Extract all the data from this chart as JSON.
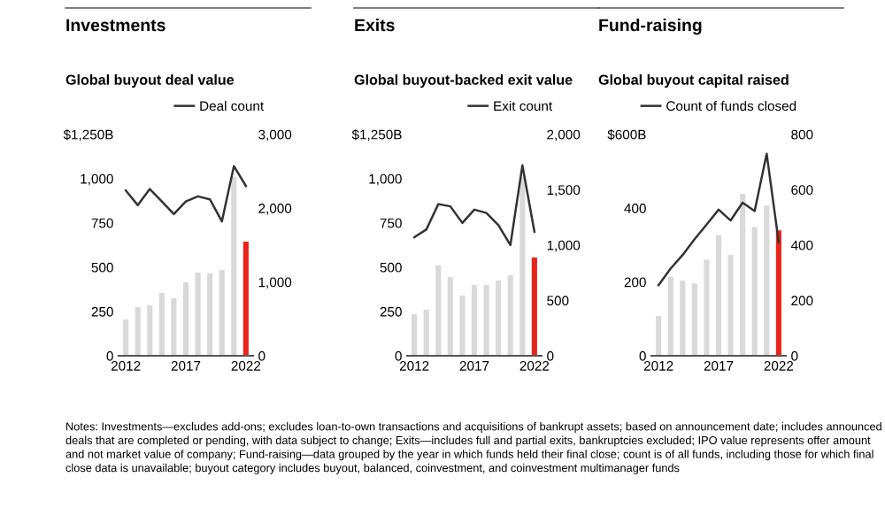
{
  "chart_data": [
    {
      "type": "bar",
      "title": "Investments",
      "subtitle": "Global buyout deal value",
      "categories": [
        "2012",
        null,
        null,
        null,
        null,
        "2017",
        null,
        null,
        null,
        null,
        "2022"
      ],
      "series": [
        {
          "colors": [
            "#d9d9d9",
            "#d9d9d9",
            "#d9d9d9",
            "#d9d9d9",
            "#d9d9d9",
            "#d9d9d9",
            "#d9d9d9",
            "#d9d9d9",
            "#d9d9d9",
            "#d9d9d9",
            "#e8251a"
          ],
          "values": [
            205,
            275,
            285,
            355,
            325,
            415,
            470,
            465,
            485,
            1010,
            645
          ]
        },
        {
          "type": "line",
          "name": "Deal count",
          "axis": "y2",
          "color": "#333333",
          "values": [
            2240,
            2040,
            2260,
            2090,
            1920,
            2090,
            2160,
            2120,
            1820,
            2570,
            2300
          ]
        }
      ],
      "ylim": [
        0,
        1250
      ],
      "yticks": [
        0,
        250,
        500,
        750,
        {
          "value": 1000,
          "label": "1,000"
        },
        {
          "value": 1250,
          "label": "$1,250B"
        }
      ],
      "y2lim": [
        0,
        3000
      ],
      "y2ticks": [
        0,
        {
          "value": 1000,
          "label": "1,000"
        },
        {
          "value": 2000,
          "label": "2,000"
        },
        {
          "value": 3000,
          "label": "3,000"
        }
      ],
      "legend": "top right",
      "annotations": [
        "Notes: Investments—excludes add-ons; excludes loan-to-own transactions and acquisitions of bankrupt assets; based on announcement date; includes announced deals that are completed or pending, with data subject to change; Exits—includes full and partial exits, bankruptcies excluded; IPO value represents offer amount and not market value of company; Fund-raising—data grouped by the year in which funds held their final close; count is of all funds, including those for which final close data is unavailable; buyout category includes buyout, balanced, coinvestment, and coinvestment multimanager funds"
      ]
    },
    {
      "type": "bar",
      "title": "Exits",
      "subtitle": "Global buyout-backed exit value",
      "categories": [
        "2012",
        null,
        null,
        null,
        null,
        "2017",
        null,
        null,
        null,
        null,
        "2022"
      ],
      "series": [
        {
          "colors": [
            "#d9d9d9",
            "#d9d9d9",
            "#d9d9d9",
            "#d9d9d9",
            "#d9d9d9",
            "#d9d9d9",
            "#d9d9d9",
            "#d9d9d9",
            "#d9d9d9",
            "#d9d9d9",
            "#e8251a"
          ],
          "values": [
            235,
            260,
            510,
            445,
            340,
            400,
            400,
            425,
            455,
            1010,
            555
          ]
        },
        {
          "type": "line",
          "name": "Exit count",
          "axis": "y2",
          "color": "#333333",
          "values": [
            1070,
            1140,
            1370,
            1350,
            1200,
            1320,
            1290,
            1180,
            1000,
            1720,
            1120
          ]
        }
      ],
      "ylim": [
        0,
        1250
      ],
      "yticks": [
        0,
        250,
        500,
        750,
        {
          "value": 1000,
          "label": "1,000"
        },
        {
          "value": 1250,
          "label": "$1,250B"
        }
      ],
      "y2lim": [
        0,
        2000
      ],
      "y2ticks": [
        0,
        500,
        {
          "value": 1000,
          "label": "1,000"
        },
        {
          "value": 1500,
          "label": "1,500"
        },
        {
          "value": 2000,
          "label": "2,000"
        }
      ],
      "legend": "top right"
    },
    {
      "type": "bar",
      "title": "Fund-raising",
      "subtitle": "Global buyout capital raised",
      "categories": [
        "2012",
        null,
        null,
        null,
        null,
        "2017",
        null,
        null,
        null,
        null,
        "2022"
      ],
      "series": [
        {
          "colors": [
            "#d9d9d9",
            "#d9d9d9",
            "#d9d9d9",
            "#d9d9d9",
            "#d9d9d9",
            "#d9d9d9",
            "#d9d9d9",
            "#d9d9d9",
            "#d9d9d9",
            "#d9d9d9",
            "#e8251a"
          ],
          "values": [
            108,
            214,
            204,
            196,
            260,
            327,
            273,
            439,
            349,
            407,
            340
          ]
        },
        {
          "type": "line",
          "name": "Count of funds closed",
          "axis": "y2",
          "color": "#333333",
          "values": [
            255,
            315,
            364,
            421,
            474,
            528,
            489,
            553,
            523,
            730,
            411
          ]
        }
      ],
      "ylim": [
        0,
        600
      ],
      "yticks": [
        0,
        200,
        400,
        {
          "value": 600,
          "label": "$600B"
        }
      ],
      "y2lim": [
        0,
        800
      ],
      "y2ticks": [
        0,
        200,
        400,
        600,
        800
      ],
      "legend": "top right"
    }
  ]
}
